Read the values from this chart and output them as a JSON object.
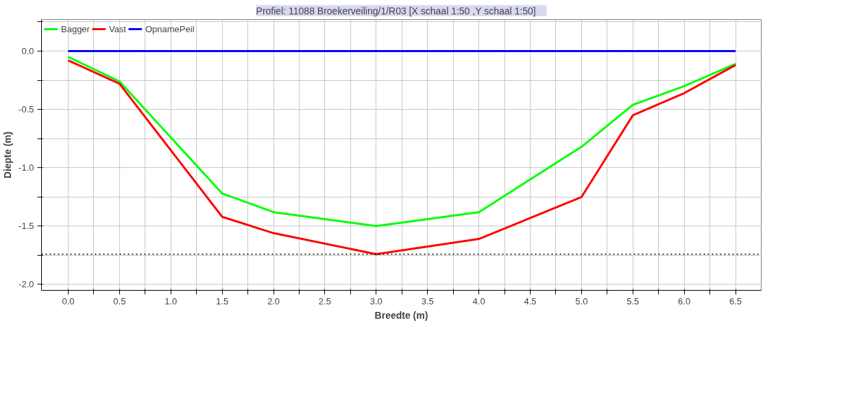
{
  "chart_data": {
    "type": "line",
    "title": "Profiel: 11088 Broekerveiling/1/R03     [X schaal 1:50 ,Y schaal 1:50]",
    "xlabel": "Breedte (m)",
    "ylabel": "Diepte (m)",
    "x": [
      0,
      0.5,
      1.5,
      2.0,
      3.0,
      4.0,
      5.0,
      5.5,
      6.0,
      6.5
    ],
    "series": [
      {
        "name": "Bagger",
        "color": "#00ff00",
        "values": [
          -0.05,
          -0.26,
          -1.22,
          -1.38,
          -1.5,
          -1.38,
          -0.82,
          -0.46,
          -0.3,
          -0.11
        ]
      },
      {
        "name": "Vast",
        "color": "#ff0000",
        "values": [
          -0.08,
          -0.28,
          -1.42,
          -1.56,
          -1.74,
          -1.61,
          -1.25,
          -0.55,
          -0.36,
          -0.12
        ]
      },
      {
        "name": "OpnamePeil",
        "color": "#0000ff",
        "values": [
          0,
          0,
          0,
          0,
          0,
          0,
          0,
          0,
          0,
          0
        ]
      }
    ],
    "ref_lines": [
      {
        "axis": "y",
        "value": -1.74,
        "label": null,
        "color": "#000000",
        "line_style": "dotted"
      }
    ],
    "xlim": [
      -0.26,
      6.75
    ],
    "ylim": [
      -2.05,
      0.27
    ],
    "xticks": [
      {
        "value": 0,
        "label": "0.0"
      },
      {
        "value": 0.25,
        "label": null
      },
      {
        "value": 0.5,
        "label": "0.5"
      },
      {
        "value": 0.75,
        "label": null
      },
      {
        "value": 1,
        "label": "1.0"
      },
      {
        "value": 1.25,
        "label": null
      },
      {
        "value": 1.5,
        "label": "1.5"
      },
      {
        "value": 1.75,
        "label": null
      },
      {
        "value": 2,
        "label": "2.0"
      },
      {
        "value": 2.25,
        "label": null
      },
      {
        "value": 2.5,
        "label": "2.5"
      },
      {
        "value": 2.75,
        "label": null
      },
      {
        "value": 3,
        "label": "3.0"
      },
      {
        "value": 3.25,
        "label": null
      },
      {
        "value": 3.5,
        "label": "3.5"
      },
      {
        "value": 3.75,
        "label": null
      },
      {
        "value": 4,
        "label": "4.0"
      },
      {
        "value": 4.25,
        "label": null
      },
      {
        "value": 4.5,
        "label": "4.5"
      },
      {
        "value": 4.75,
        "label": null
      },
      {
        "value": 5,
        "label": "5.0"
      },
      {
        "value": 5.25,
        "label": null
      },
      {
        "value": 5.5,
        "label": "5.5"
      },
      {
        "value": 5.75,
        "label": null
      },
      {
        "value": 6,
        "label": "6.0"
      },
      {
        "value": 6.25,
        "label": null
      },
      {
        "value": 6.5,
        "label": "6.5"
      }
    ],
    "yticks": [
      {
        "value": 0.25,
        "label": null
      },
      {
        "value": 0,
        "label": "0.0"
      },
      {
        "value": -0.25,
        "label": null
      },
      {
        "value": -0.5,
        "label": "-0.5"
      },
      {
        "value": -0.75,
        "label": null
      },
      {
        "value": -1,
        "label": "-1.0"
      },
      {
        "value": -1.25,
        "label": null
      },
      {
        "value": -1.5,
        "label": "-1.5"
      },
      {
        "value": -1.75,
        "label": null
      },
      {
        "value": -2,
        "label": "-2.0"
      }
    ],
    "grid": true,
    "legend": "top left",
    "marker": "none",
    "line_style": "solid"
  }
}
